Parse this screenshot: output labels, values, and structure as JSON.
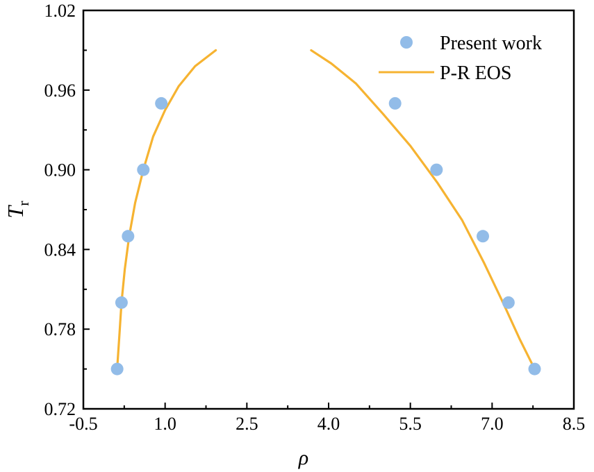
{
  "chart_data": {
    "type": "scatter",
    "title": "",
    "xlabel": "ρ",
    "ylabel": "T",
    "ylabel_subscript": "r",
    "xlim": [
      -0.5,
      8.5
    ],
    "ylim": [
      0.72,
      1.02
    ],
    "xticks": [
      -0.5,
      1.0,
      2.5,
      4.0,
      5.5,
      7.0,
      8.5
    ],
    "xtick_labels": [
      "-0.5",
      "1.0",
      "2.5",
      "4.0",
      "5.5",
      "7.0",
      "8.5"
    ],
    "yticks": [
      0.72,
      0.78,
      0.84,
      0.9,
      0.96,
      1.02
    ],
    "ytick_labels": [
      "0.72",
      "0.78",
      "0.84",
      "0.90",
      "0.96",
      "1.02"
    ],
    "grid": false,
    "legend_position": "top-right",
    "series": [
      {
        "name": "Present work",
        "kind": "scatter",
        "color": "#92bce8",
        "x": [
          0.12,
          0.2,
          0.32,
          0.6,
          0.93,
          5.22,
          5.98,
          6.83,
          7.3,
          7.78
        ],
        "y": [
          0.75,
          0.8,
          0.85,
          0.9,
          0.95,
          0.95,
          0.9,
          0.85,
          0.8,
          0.75
        ]
      },
      {
        "name": "P-R EOS",
        "kind": "line",
        "color": "#f6b331",
        "segments": [
          {
            "x": [
              0.12,
              0.16,
              0.2,
              0.26,
              0.34,
              0.45,
              0.6,
              0.78,
              1.0,
              1.25,
              1.55,
              1.93
            ],
            "y": [
              0.75,
              0.775,
              0.8,
              0.825,
              0.85,
              0.875,
              0.9,
              0.925,
              0.945,
              0.963,
              0.978,
              0.99
            ]
          },
          {
            "x": [
              3.68,
              4.05,
              4.5,
              5.0,
              5.5,
              6.0,
              6.45,
              6.85,
              7.2,
              7.5,
              7.78
            ],
            "y": [
              0.99,
              0.98,
              0.965,
              0.942,
              0.918,
              0.89,
              0.862,
              0.83,
              0.8,
              0.773,
              0.75
            ]
          }
        ]
      }
    ]
  }
}
